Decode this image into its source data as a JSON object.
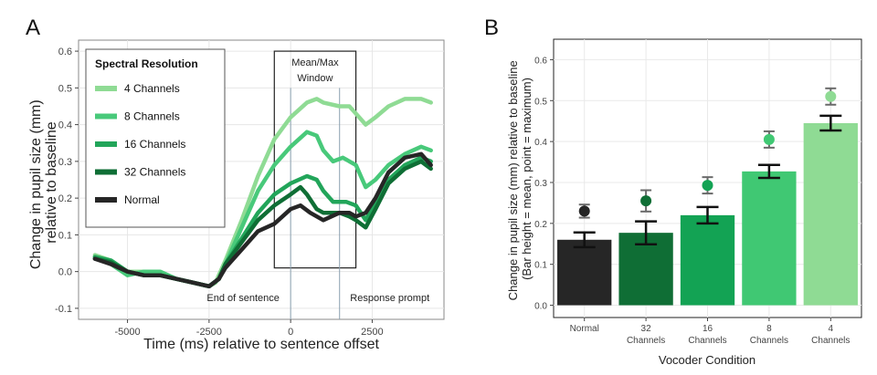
{
  "chart_data": [
    {
      "panel": "A",
      "type": "line",
      "xlabel": "Time (ms) relative to sentence offset",
      "ylabel": "Change in pupil size (mm) relative to baseline",
      "xlim": [
        -6500,
        4700
      ],
      "ylim": [
        -0.13,
        0.63
      ],
      "xticks": [
        -5000,
        -2500,
        0,
        2500
      ],
      "yticks": [
        -0.1,
        0.0,
        0.1,
        0.2,
        0.3,
        0.4,
        0.5,
        0.6
      ],
      "ytick_labels": [
        "-0.1",
        "0.0",
        "0.1",
        "0.2",
        "0.3",
        "0.4",
        "0.5",
        "0.6"
      ],
      "grid": true,
      "legend": {
        "title": "Spectral Resolution",
        "placement": "top-left"
      },
      "annotations": {
        "window_box": {
          "x_range": [
            -500,
            2000
          ],
          "y_range": [
            0.01,
            0.6
          ],
          "label_line1": "Mean/Max",
          "label_line2": "Window"
        },
        "end_of_sentence": {
          "x": 0,
          "label": "End of sentence"
        },
        "response_prompt": {
          "x": 1500,
          "label": "Response prompt"
        }
      },
      "series": [
        {
          "name": "4 Channels",
          "color": "#8fdb94",
          "points": [
            [
              -6000,
              0.045
            ],
            [
              -5500,
              0.03
            ],
            [
              -5000,
              0.0
            ],
            [
              -4500,
              0.0
            ],
            [
              -4000,
              -0.01
            ],
            [
              -3500,
              -0.02
            ],
            [
              -3000,
              -0.03
            ],
            [
              -2500,
              -0.04
            ],
            [
              -2300,
              -0.03
            ],
            [
              -2000,
              0.03
            ],
            [
              -1500,
              0.14
            ],
            [
              -1000,
              0.26
            ],
            [
              -500,
              0.36
            ],
            [
              0,
              0.42
            ],
            [
              500,
              0.46
            ],
            [
              800,
              0.47
            ],
            [
              1000,
              0.46
            ],
            [
              1500,
              0.45
            ],
            [
              1800,
              0.45
            ],
            [
              2000,
              0.43
            ],
            [
              2300,
              0.4
            ],
            [
              2600,
              0.42
            ],
            [
              3000,
              0.45
            ],
            [
              3500,
              0.47
            ],
            [
              4000,
              0.47
            ],
            [
              4300,
              0.46
            ]
          ]
        },
        {
          "name": "8 Channels",
          "color": "#48c97a",
          "points": [
            [
              -6000,
              0.04
            ],
            [
              -5500,
              0.02
            ],
            [
              -5000,
              -0.01
            ],
            [
              -4500,
              0.0
            ],
            [
              -4000,
              0.0
            ],
            [
              -3500,
              -0.02
            ],
            [
              -3000,
              -0.03
            ],
            [
              -2500,
              -0.04
            ],
            [
              -2200,
              -0.02
            ],
            [
              -2000,
              0.02
            ],
            [
              -1500,
              0.12
            ],
            [
              -1000,
              0.22
            ],
            [
              -500,
              0.29
            ],
            [
              0,
              0.34
            ],
            [
              500,
              0.38
            ],
            [
              800,
              0.37
            ],
            [
              1000,
              0.33
            ],
            [
              1300,
              0.3
            ],
            [
              1600,
              0.31
            ],
            [
              2000,
              0.29
            ],
            [
              2300,
              0.23
            ],
            [
              2600,
              0.25
            ],
            [
              3000,
              0.29
            ],
            [
              3500,
              0.32
            ],
            [
              4000,
              0.34
            ],
            [
              4300,
              0.33
            ]
          ]
        },
        {
          "name": "16 Channels",
          "color": "#22a55a",
          "points": [
            [
              -6000,
              0.04
            ],
            [
              -5500,
              0.03
            ],
            [
              -5000,
              0.0
            ],
            [
              -4500,
              -0.01
            ],
            [
              -4000,
              -0.01
            ],
            [
              -3500,
              -0.02
            ],
            [
              -3000,
              -0.03
            ],
            [
              -2500,
              -0.04
            ],
            [
              -2200,
              -0.02
            ],
            [
              -2000,
              0.02
            ],
            [
              -1500,
              0.09
            ],
            [
              -1000,
              0.16
            ],
            [
              -500,
              0.21
            ],
            [
              0,
              0.24
            ],
            [
              500,
              0.26
            ],
            [
              800,
              0.25
            ],
            [
              1000,
              0.22
            ],
            [
              1300,
              0.19
            ],
            [
              1700,
              0.19
            ],
            [
              2000,
              0.18
            ],
            [
              2300,
              0.14
            ],
            [
              2600,
              0.19
            ],
            [
              3000,
              0.25
            ],
            [
              3500,
              0.29
            ],
            [
              4000,
              0.31
            ],
            [
              4300,
              0.3
            ]
          ]
        },
        {
          "name": "32 Channels",
          "color": "#0f6e35",
          "points": [
            [
              -6000,
              0.035
            ],
            [
              -5500,
              0.025
            ],
            [
              -5000,
              0.0
            ],
            [
              -4500,
              -0.01
            ],
            [
              -4000,
              -0.01
            ],
            [
              -3500,
              -0.02
            ],
            [
              -3000,
              -0.03
            ],
            [
              -2500,
              -0.04
            ],
            [
              -2200,
              -0.02
            ],
            [
              -2000,
              0.02
            ],
            [
              -1500,
              0.08
            ],
            [
              -1000,
              0.14
            ],
            [
              -500,
              0.18
            ],
            [
              0,
              0.21
            ],
            [
              300,
              0.23
            ],
            [
              500,
              0.21
            ],
            [
              800,
              0.17
            ],
            [
              1000,
              0.16
            ],
            [
              1500,
              0.16
            ],
            [
              1800,
              0.15
            ],
            [
              2000,
              0.14
            ],
            [
              2300,
              0.12
            ],
            [
              2600,
              0.17
            ],
            [
              3000,
              0.24
            ],
            [
              3500,
              0.28
            ],
            [
              4000,
              0.3
            ],
            [
              4300,
              0.28
            ]
          ]
        },
        {
          "name": "Normal",
          "color": "#262626",
          "points": [
            [
              -6000,
              0.035
            ],
            [
              -5500,
              0.02
            ],
            [
              -5000,
              0.0
            ],
            [
              -4500,
              -0.01
            ],
            [
              -4000,
              -0.01
            ],
            [
              -3500,
              -0.02
            ],
            [
              -3000,
              -0.03
            ],
            [
              -2500,
              -0.04
            ],
            [
              -2200,
              -0.02
            ],
            [
              -2000,
              0.01
            ],
            [
              -1500,
              0.06
            ],
            [
              -1000,
              0.11
            ],
            [
              -500,
              0.13
            ],
            [
              0,
              0.17
            ],
            [
              300,
              0.18
            ],
            [
              600,
              0.16
            ],
            [
              1000,
              0.14
            ],
            [
              1500,
              0.16
            ],
            [
              1800,
              0.16
            ],
            [
              2000,
              0.15
            ],
            [
              2300,
              0.16
            ],
            [
              2600,
              0.2
            ],
            [
              3000,
              0.27
            ],
            [
              3500,
              0.31
            ],
            [
              4000,
              0.32
            ],
            [
              4300,
              0.29
            ]
          ]
        }
      ]
    },
    {
      "panel": "B",
      "type": "bar",
      "xlabel": "Vocoder Condition",
      "ylabel_line1": "Change in pupil size (mm) relative to baseline",
      "ylabel_line2": "(Bar height = mean, point = maximum)",
      "ylim": [
        -0.03,
        0.65
      ],
      "yticks": [
        0.0,
        0.1,
        0.2,
        0.3,
        0.4,
        0.5,
        0.6
      ],
      "ytick_labels": [
        "0.0",
        "0.1",
        "0.2",
        "0.3",
        "0.4",
        "0.5",
        "0.6"
      ],
      "grid": true,
      "categories": [
        {
          "line1": "Normal",
          "line2": ""
        },
        {
          "line1": "32",
          "line2": "Channels"
        },
        {
          "line1": "16",
          "line2": "Channels"
        },
        {
          "line1": "8",
          "line2": "Channels"
        },
        {
          "line1": "4",
          "line2": "Channels"
        }
      ],
      "bar_colors": [
        "#262626",
        "#0f6e35",
        "#13a354",
        "#40c873",
        "#8fdb94"
      ],
      "mean_values": [
        0.16,
        0.177,
        0.22,
        0.327,
        0.445
      ],
      "mean_errors": [
        0.018,
        0.028,
        0.02,
        0.016,
        0.018
      ],
      "max_values": [
        0.23,
        0.255,
        0.293,
        0.405,
        0.51
      ],
      "max_errors": [
        0.016,
        0.026,
        0.02,
        0.02,
        0.02
      ]
    }
  ]
}
